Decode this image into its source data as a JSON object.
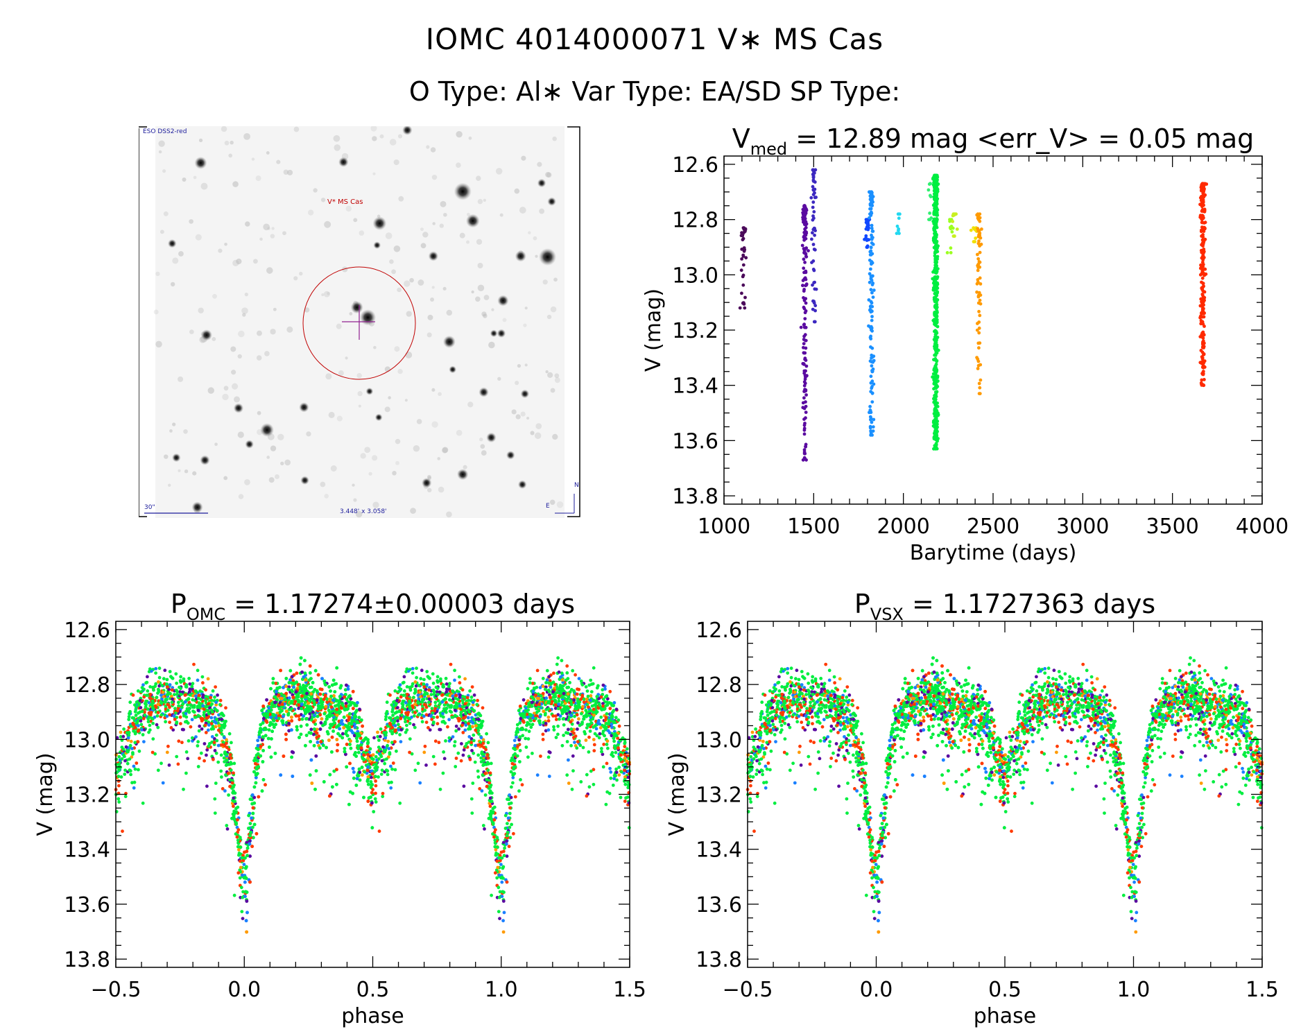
{
  "header": {
    "title": "IOMC 4014000071   V∗ MS Cas",
    "subtitle": "O Type: Al∗  Var Type: EA/SD  SP Type:"
  },
  "finder": {
    "survey_label": "ESO DSS2-red",
    "target_label": "V* MS Cas",
    "scale_label": "30\"",
    "fov_label": "3.448' x 3.058'",
    "north_label": "N",
    "east_label": "E"
  },
  "chart_data": [
    {
      "type": "scatter",
      "id": "lightcurve",
      "title_main": "V",
      "title_sub": "med",
      "title_rest": " = 12.89 mag <err_V> = 0.05 mag",
      "xlabel": "Barytime (days)",
      "ylabel": "V (mag)",
      "xlim": [
        1000,
        4000
      ],
      "ylim": [
        12.57,
        13.83
      ],
      "y_inverted": true,
      "xticks": [
        1000,
        1500,
        2000,
        2500,
        3000,
        3500,
        4000
      ],
      "xtick_labels": [
        "1000",
        "1500",
        "2000",
        "2500",
        "3000",
        "3500",
        "4000"
      ],
      "yticks": [
        12.6,
        12.8,
        13.0,
        13.2,
        13.4,
        13.6,
        13.8
      ],
      "ytick_labels": [
        "12.6",
        "12.8",
        "13.0",
        "13.2",
        "13.4",
        "13.6",
        "13.8"
      ],
      "groups": [
        {
          "x": 1110,
          "v_range": [
            12.83,
            13.12
          ],
          "n": 40,
          "color": "#4b0a5a"
        },
        {
          "x": 1450,
          "v_range": [
            12.75,
            13.67
          ],
          "n": 160,
          "color": "#5a0aa0"
        },
        {
          "x": 1500,
          "v_range": [
            12.62,
            13.17
          ],
          "n": 60,
          "color": "#3c28c0"
        },
        {
          "x": 1800,
          "v_range": [
            12.8,
            12.9
          ],
          "n": 30,
          "color": "#1048ff"
        },
        {
          "x": 1820,
          "v_range": [
            12.7,
            13.58
          ],
          "n": 150,
          "color": "#1a90ff"
        },
        {
          "x": 1975,
          "v_range": [
            12.78,
            12.85
          ],
          "n": 8,
          "color": "#20d8f0"
        },
        {
          "x": 2150,
          "v_range": [
            12.67,
            12.8
          ],
          "n": 10,
          "color": "#30f070"
        },
        {
          "x": 2180,
          "v_range": [
            12.64,
            13.63
          ],
          "n": 600,
          "color": "#00ee40"
        },
        {
          "x": 2262,
          "v_range": [
            12.8,
            12.92
          ],
          "n": 12,
          "color": "#9cff20"
        },
        {
          "x": 2285,
          "v_range": [
            12.78,
            12.86
          ],
          "n": 10,
          "color": "#c8f020"
        },
        {
          "x": 2400,
          "v_range": [
            12.83,
            12.88
          ],
          "n": 12,
          "color": "#f0e000"
        },
        {
          "x": 2420,
          "v_range": [
            12.78,
            13.43
          ],
          "n": 70,
          "color": "#ff9a00"
        },
        {
          "x": 3670,
          "v_range": [
            12.67,
            13.4
          ],
          "n": 260,
          "color": "#ff2a00"
        }
      ]
    },
    {
      "type": "scatter",
      "id": "phase_omc",
      "title_main": "P",
      "title_sub": "OMC",
      "title_rest": " = 1.17274±0.00003 days",
      "xlabel": "phase",
      "ylabel": "V (mag)",
      "xlim": [
        -0.5,
        1.5
      ],
      "ylim": [
        12.57,
        13.83
      ],
      "y_inverted": true,
      "xticks": [
        -0.5,
        0.0,
        0.5,
        1.0,
        1.5
      ],
      "xtick_labels": [
        "−0.5",
        "0.0",
        "0.5",
        "1.0",
        "1.5"
      ],
      "yticks": [
        12.6,
        12.8,
        13.0,
        13.2,
        13.4,
        13.6,
        13.8
      ],
      "ytick_labels": [
        "12.6",
        "12.8",
        "13.0",
        "13.2",
        "13.4",
        "13.6",
        "13.8"
      ],
      "model_phase": [
        0,
        0.02,
        0.04,
        0.06,
        0.08,
        0.1,
        0.2,
        0.3,
        0.4,
        0.44,
        0.47,
        0.5,
        0.53,
        0.56,
        0.6,
        0.7,
        0.8,
        0.9,
        0.92,
        0.94,
        0.96,
        0.98,
        1.0
      ],
      "model_mag": [
        13.52,
        13.36,
        13.15,
        13.0,
        12.93,
        12.88,
        12.84,
        12.86,
        12.9,
        12.95,
        13.05,
        13.12,
        13.05,
        12.95,
        12.88,
        12.84,
        12.86,
        12.92,
        12.97,
        13.06,
        13.2,
        13.38,
        13.52
      ],
      "scatter_mag": 0.06,
      "color_weights": [
        [
          "#00ee40",
          0.55
        ],
        [
          "#ff3a00",
          0.2
        ],
        [
          "#1a80ff",
          0.1
        ],
        [
          "#5a0aa0",
          0.1
        ],
        [
          "#ff9a00",
          0.05
        ]
      ],
      "n_points": 1800
    },
    {
      "type": "scatter",
      "id": "phase_vsx",
      "title_main": "P",
      "title_sub": "VSX",
      "title_rest": " = 1.1727363 days",
      "xlabel": "phase",
      "ylabel": "V (mag)",
      "xlim": [
        -0.5,
        1.5
      ],
      "ylim": [
        12.57,
        13.83
      ],
      "y_inverted": true,
      "xticks": [
        -0.5,
        0.0,
        0.5,
        1.0,
        1.5
      ],
      "xtick_labels": [
        "−0.5",
        "0.0",
        "0.5",
        "1.0",
        "1.5"
      ],
      "yticks": [
        12.6,
        12.8,
        13.0,
        13.2,
        13.4,
        13.6,
        13.8
      ],
      "ytick_labels": [
        "12.6",
        "12.8",
        "13.0",
        "13.2",
        "13.4",
        "13.6",
        "13.8"
      ],
      "model_phase": [
        0,
        0.02,
        0.04,
        0.06,
        0.08,
        0.1,
        0.2,
        0.3,
        0.4,
        0.44,
        0.47,
        0.5,
        0.53,
        0.56,
        0.6,
        0.7,
        0.8,
        0.9,
        0.92,
        0.94,
        0.96,
        0.98,
        1.0
      ],
      "model_mag": [
        13.52,
        13.36,
        13.15,
        13.0,
        12.93,
        12.88,
        12.84,
        12.86,
        12.9,
        12.95,
        13.05,
        13.12,
        13.05,
        12.95,
        12.88,
        12.84,
        12.86,
        12.92,
        12.97,
        13.06,
        13.2,
        13.38,
        13.52
      ],
      "scatter_mag": 0.06,
      "color_weights": [
        [
          "#00ee40",
          0.55
        ],
        [
          "#ff3a00",
          0.2
        ],
        [
          "#1a80ff",
          0.1
        ],
        [
          "#5a0aa0",
          0.1
        ],
        [
          "#ff9a00",
          0.05
        ]
      ],
      "n_points": 1800
    }
  ]
}
